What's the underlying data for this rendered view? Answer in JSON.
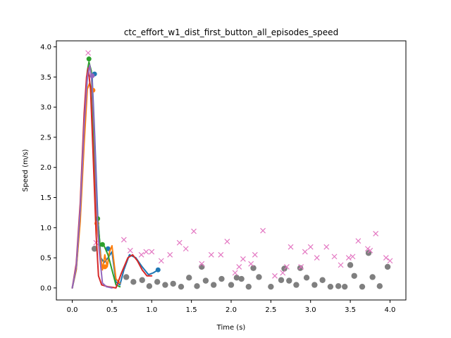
{
  "chart_data": {
    "type": "line",
    "title": "ctc_effort_w1_dist_first_button_all_episodes_speed",
    "xlabel": "Time (s)",
    "ylabel": "Speed (m/s)",
    "xlim": [
      -0.2,
      4.2
    ],
    "ylim": [
      -0.2,
      4.1
    ],
    "xticks": [
      "0.0",
      "0.5",
      "1.0",
      "1.5",
      "2.0",
      "2.5",
      "3.0",
      "3.5",
      "4.0"
    ],
    "yticks": [
      "0.0",
      "0.5",
      "1.0",
      "1.5",
      "2.0",
      "2.5",
      "3.0",
      "3.5",
      "4.0"
    ],
    "grid": false,
    "series": [
      {
        "color": "#1f77b4",
        "points": [
          [
            0,
            0
          ],
          [
            0.05,
            0.3
          ],
          [
            0.1,
            1.2
          ],
          [
            0.15,
            2.6
          ],
          [
            0.19,
            3.5
          ],
          [
            0.22,
            3.7
          ],
          [
            0.25,
            3.5
          ],
          [
            0.28,
            2.6
          ],
          [
            0.32,
            1.2
          ],
          [
            0.36,
            0.5
          ],
          [
            0.4,
            0.42
          ],
          [
            0.45,
            0.5
          ],
          [
            0.5,
            0.6
          ],
          [
            0.55,
            0.1
          ],
          [
            0.6,
            0.05
          ],
          [
            0.65,
            0.3
          ],
          [
            0.72,
            0.55
          ],
          [
            0.8,
            0.5
          ],
          [
            0.88,
            0.35
          ],
          [
            0.96,
            0.22
          ],
          [
            1.02,
            0.25
          ],
          [
            1.08,
            0.3
          ]
        ],
        "markers": [
          [
            0.28,
            3.55
          ],
          [
            0.45,
            0.65
          ],
          [
            1.08,
            0.3
          ]
        ]
      },
      {
        "color": "#ff7f0e",
        "points": [
          [
            0,
            0
          ],
          [
            0.05,
            0.3
          ],
          [
            0.1,
            1.1
          ],
          [
            0.15,
            2.4
          ],
          [
            0.19,
            3.3
          ],
          [
            0.22,
            3.4
          ],
          [
            0.25,
            3.25
          ],
          [
            0.28,
            2.0
          ],
          [
            0.3,
            1.1
          ],
          [
            0.35,
            0.6
          ],
          [
            0.38,
            0.3
          ],
          [
            0.41,
            0.55
          ],
          [
            0.44,
            0.35
          ],
          [
            0.47,
            0.6
          ],
          [
            0.5,
            0.7
          ],
          [
            0.55,
            0.15
          ],
          [
            0.6,
            0.08
          ]
        ],
        "markers": [
          [
            0.26,
            3.28
          ],
          [
            0.31,
            1.07
          ],
          [
            0.41,
            0.35
          ]
        ]
      },
      {
        "color": "#2ca02c",
        "points": [
          [
            0,
            0
          ],
          [
            0.05,
            0.35
          ],
          [
            0.1,
            1.3
          ],
          [
            0.15,
            2.8
          ],
          [
            0.19,
            3.6
          ],
          [
            0.21,
            3.75
          ],
          [
            0.24,
            3.6
          ],
          [
            0.27,
            2.6
          ],
          [
            0.31,
            1.3
          ],
          [
            0.35,
            0.7
          ],
          [
            0.4,
            0.7
          ],
          [
            0.45,
            0.55
          ],
          [
            0.5,
            0.3
          ],
          [
            0.55,
            0.05
          ],
          [
            0.6,
            0.02
          ]
        ],
        "markers": [
          [
            0.21,
            3.8
          ],
          [
            0.32,
            1.15
          ],
          [
            0.38,
            0.72
          ]
        ]
      },
      {
        "color": "#d62728",
        "points": [
          [
            0,
            0
          ],
          [
            0.05,
            0.4
          ],
          [
            0.1,
            1.4
          ],
          [
            0.15,
            2.9
          ],
          [
            0.18,
            3.5
          ],
          [
            0.2,
            3.65
          ],
          [
            0.23,
            3.3
          ],
          [
            0.26,
            2.3
          ],
          [
            0.3,
            0.9
          ],
          [
            0.33,
            0.2
          ],
          [
            0.37,
            0.05
          ],
          [
            0.45,
            0.02
          ],
          [
            0.55,
            0.0
          ],
          [
            0.62,
            0.25
          ],
          [
            0.7,
            0.5
          ],
          [
            0.76,
            0.55
          ],
          [
            0.82,
            0.45
          ],
          [
            0.88,
            0.3
          ],
          [
            0.94,
            0.2
          ],
          [
            1.0,
            0.2
          ]
        ],
        "markers": []
      },
      {
        "color": "#9467bd",
        "points": [
          [
            0,
            0
          ],
          [
            0.05,
            0.35
          ],
          [
            0.1,
            1.3
          ],
          [
            0.15,
            2.7
          ],
          [
            0.19,
            3.5
          ],
          [
            0.22,
            3.7
          ],
          [
            0.25,
            3.4
          ],
          [
            0.28,
            2.5
          ],
          [
            0.31,
            1.3
          ],
          [
            0.34,
            0.6
          ],
          [
            0.38,
            0.08
          ],
          [
            0.43,
            0.02
          ],
          [
            0.5,
            0.0
          ]
        ],
        "markers": [
          [
            0.25,
            3.52
          ]
        ]
      }
    ],
    "scatter_x": {
      "color": "#e377c2",
      "marker": "x",
      "points": [
        [
          0.2,
          3.9
        ],
        [
          0.3,
          0.75
        ],
        [
          0.65,
          0.8
        ],
        [
          0.73,
          0.62
        ],
        [
          0.87,
          0.55
        ],
        [
          0.93,
          0.6
        ],
        [
          1.0,
          0.6
        ],
        [
          1.12,
          0.45
        ],
        [
          1.23,
          0.55
        ],
        [
          1.35,
          0.75
        ],
        [
          1.43,
          0.65
        ],
        [
          1.53,
          0.94
        ],
        [
          1.63,
          0.4
        ],
        [
          1.75,
          0.55
        ],
        [
          1.87,
          0.55
        ],
        [
          1.95,
          0.77
        ],
        [
          2.05,
          0.25
        ],
        [
          2.1,
          0.35
        ],
        [
          2.15,
          0.48
        ],
        [
          2.25,
          0.4
        ],
        [
          2.3,
          0.55
        ],
        [
          2.4,
          0.95
        ],
        [
          2.55,
          0.2
        ],
        [
          2.65,
          0.25
        ],
        [
          2.7,
          0.35
        ],
        [
          2.75,
          0.68
        ],
        [
          2.88,
          0.35
        ],
        [
          2.93,
          0.6
        ],
        [
          3.0,
          0.68
        ],
        [
          3.08,
          0.5
        ],
        [
          3.2,
          0.68
        ],
        [
          3.3,
          0.52
        ],
        [
          3.38,
          0.38
        ],
        [
          3.48,
          0.5
        ],
        [
          3.53,
          0.52
        ],
        [
          3.6,
          0.78
        ],
        [
          3.72,
          0.65
        ],
        [
          3.75,
          0.62
        ],
        [
          3.82,
          0.9
        ],
        [
          3.95,
          0.5
        ],
        [
          4.0,
          0.45
        ]
      ]
    },
    "scatter_dot": {
      "color": "#7f7f7f",
      "marker": "o",
      "points": [
        [
          0.28,
          0.65
        ],
        [
          0.68,
          0.18
        ],
        [
          0.77,
          0.1
        ],
        [
          0.88,
          0.13
        ],
        [
          0.97,
          0.03
        ],
        [
          1.07,
          0.1
        ],
        [
          1.17,
          0.05
        ],
        [
          1.27,
          0.07
        ],
        [
          1.37,
          0.02
        ],
        [
          1.47,
          0.17
        ],
        [
          1.57,
          0.03
        ],
        [
          1.63,
          0.35
        ],
        [
          1.68,
          0.12
        ],
        [
          1.78,
          0.05
        ],
        [
          1.88,
          0.15
        ],
        [
          2.0,
          0.05
        ],
        [
          2.07,
          0.17
        ],
        [
          2.13,
          0.15
        ],
        [
          2.22,
          0.02
        ],
        [
          2.28,
          0.33
        ],
        [
          2.35,
          0.18
        ],
        [
          2.5,
          0.02
        ],
        [
          2.63,
          0.13
        ],
        [
          2.67,
          0.32
        ],
        [
          2.73,
          0.12
        ],
        [
          2.82,
          0.05
        ],
        [
          2.87,
          0.33
        ],
        [
          2.95,
          0.17
        ],
        [
          3.05,
          0.05
        ],
        [
          3.15,
          0.13
        ],
        [
          3.25,
          0.02
        ],
        [
          3.35,
          0.03
        ],
        [
          3.43,
          0.02
        ],
        [
          3.5,
          0.38
        ],
        [
          3.55,
          0.2
        ],
        [
          3.65,
          0.02
        ],
        [
          3.73,
          0.58
        ],
        [
          3.78,
          0.18
        ],
        [
          3.87,
          0.03
        ],
        [
          3.97,
          0.35
        ]
      ]
    }
  }
}
